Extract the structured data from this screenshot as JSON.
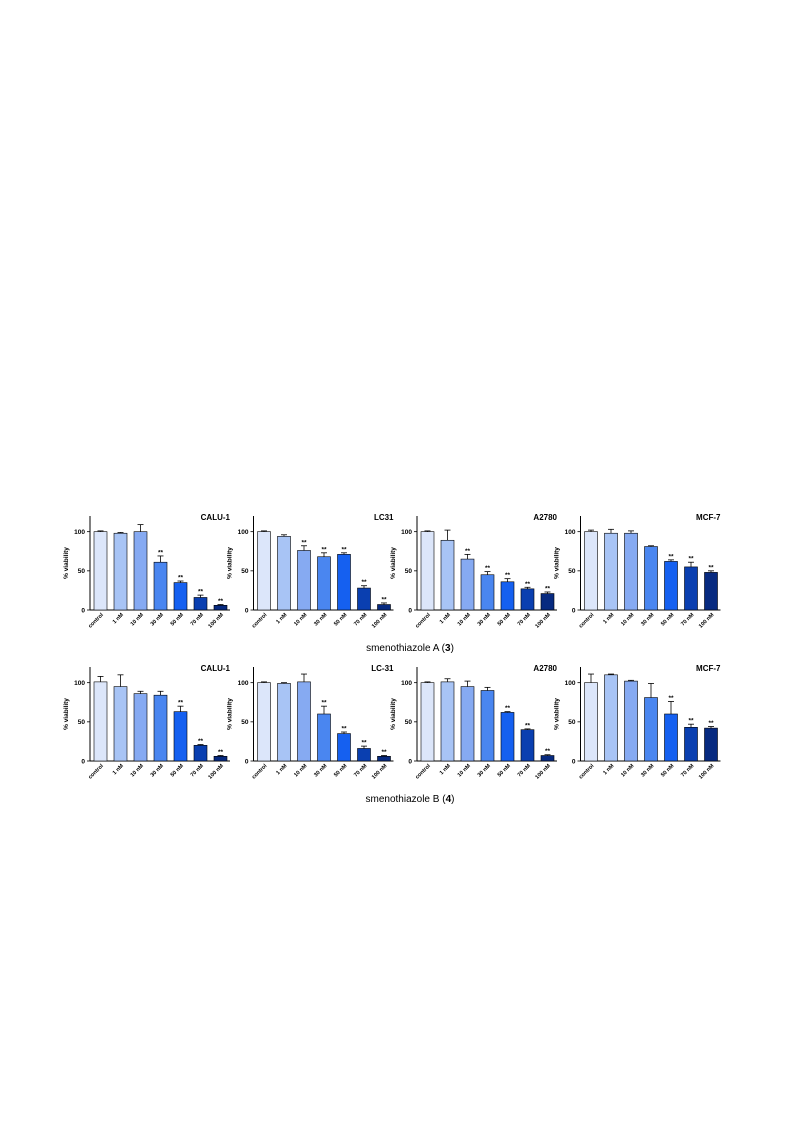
{
  "chart_data": [
    {
      "type": "bar",
      "title": "CALU-1",
      "ylabel": "% viability",
      "categories": [
        "control",
        "1 nM",
        "10 nM",
        "30 nM",
        "50 nM",
        "70 nM",
        "100 nM"
      ],
      "values": [
        100,
        98,
        100,
        61,
        35,
        16,
        6
      ],
      "errors": [
        1,
        1,
        9,
        8,
        2,
        3,
        1
      ],
      "annotations": [
        null,
        null,
        null,
        "**",
        "**",
        "**",
        "**"
      ],
      "colors": [
        "#dce6fa",
        "#a8c4f5",
        "#86aaf2",
        "#4a86f0",
        "#1560f0",
        "#0a3fb0",
        "#072a80"
      ],
      "ylim": [
        0,
        120
      ],
      "yticks": [
        0,
        50,
        100
      ]
    },
    {
      "type": "bar",
      "title": "LC31",
      "ylabel": "% viability",
      "categories": [
        "control",
        "1 nM",
        "10 nM",
        "30 nM",
        "50 nM",
        "70 nM",
        "100 nM"
      ],
      "values": [
        100,
        94,
        76,
        68,
        71,
        28,
        7
      ],
      "errors": [
        1,
        2,
        6,
        5,
        2,
        3,
        2
      ],
      "annotations": [
        null,
        null,
        "**",
        "**",
        "**",
        "**",
        "**"
      ],
      "colors": [
        "#dce6fa",
        "#a8c4f5",
        "#86aaf2",
        "#4a86f0",
        "#1560f0",
        "#0a3fb0",
        "#072a80"
      ],
      "ylim": [
        0,
        120
      ],
      "yticks": [
        0,
        50,
        100
      ]
    },
    {
      "type": "bar",
      "title": "A2780",
      "ylabel": "% viability",
      "categories": [
        "control",
        "1 nM",
        "10 nM",
        "30 nM",
        "50 nM",
        "70 nM",
        "100 nM"
      ],
      "values": [
        100,
        89,
        65,
        45,
        36,
        27,
        21
      ],
      "errors": [
        1,
        13,
        6,
        4,
        4,
        2,
        2
      ],
      "annotations": [
        null,
        null,
        "**",
        "**",
        "**",
        "**",
        "**"
      ],
      "colors": [
        "#dce6fa",
        "#a8c4f5",
        "#86aaf2",
        "#4a86f0",
        "#1560f0",
        "#0a3fb0",
        "#072a80"
      ],
      "ylim": [
        0,
        120
      ],
      "yticks": [
        0,
        50,
        100
      ]
    },
    {
      "type": "bar",
      "title": "MCF-7",
      "ylabel": "% viability",
      "categories": [
        "control",
        "1 nM",
        "10 nM",
        "30 nM",
        "50 nM",
        "70 nM",
        "100 nM"
      ],
      "values": [
        100,
        98,
        98,
        81,
        62,
        55,
        48
      ],
      "errors": [
        2,
        5,
        3,
        1,
        2,
        6,
        2
      ],
      "annotations": [
        null,
        null,
        null,
        null,
        "**",
        "**",
        "**"
      ],
      "colors": [
        "#dce6fa",
        "#a8c4f5",
        "#86aaf2",
        "#4a86f0",
        "#1560f0",
        "#0a3fb0",
        "#072a80"
      ],
      "ylim": [
        0,
        120
      ],
      "yticks": [
        0,
        50,
        100
      ]
    },
    {
      "type": "bar",
      "title": "CALU-1",
      "ylabel": "% viability",
      "categories": [
        "control",
        "1 nM",
        "10 nM",
        "30 nM",
        "50 nM",
        "70 nM",
        "100 nM"
      ],
      "values": [
        101,
        95,
        86,
        84,
        63,
        20,
        6
      ],
      "errors": [
        7,
        15,
        3,
        5,
        7,
        1,
        1
      ],
      "annotations": [
        null,
        null,
        null,
        null,
        "**",
        "**",
        "**"
      ],
      "colors": [
        "#dce6fa",
        "#a8c4f5",
        "#86aaf2",
        "#4a86f0",
        "#1560f0",
        "#0a3fb0",
        "#072a80"
      ],
      "ylim": [
        0,
        120
      ],
      "yticks": [
        0,
        50,
        100
      ]
    },
    {
      "type": "bar",
      "title": "LC-31",
      "ylabel": "% viability",
      "categories": [
        "control",
        "1 nM",
        "10 nM",
        "30 nM",
        "50 nM",
        "70 nM",
        "100 nM"
      ],
      "values": [
        100,
        99,
        101,
        60,
        35,
        16,
        6
      ],
      "errors": [
        1,
        1,
        10,
        10,
        2,
        3,
        1
      ],
      "annotations": [
        null,
        null,
        null,
        "**",
        "**",
        "**",
        "**"
      ],
      "colors": [
        "#dce6fa",
        "#a8c4f5",
        "#86aaf2",
        "#4a86f0",
        "#1560f0",
        "#0a3fb0",
        "#072a80"
      ],
      "ylim": [
        0,
        120
      ],
      "yticks": [
        0,
        50,
        100
      ]
    },
    {
      "type": "bar",
      "title": "A2780",
      "ylabel": "% viability",
      "categories": [
        "control",
        "1 nM",
        "10 nM",
        "30 nM",
        "50 nM",
        "70 nM",
        "100 nM"
      ],
      "values": [
        100,
        101,
        95,
        90,
        62,
        40,
        7
      ],
      "errors": [
        1,
        4,
        7,
        4,
        1,
        1,
        1
      ],
      "annotations": [
        null,
        null,
        null,
        null,
        "**",
        "**",
        "**"
      ],
      "colors": [
        "#dce6fa",
        "#a8c4f5",
        "#86aaf2",
        "#4a86f0",
        "#1560f0",
        "#0a3fb0",
        "#072a80"
      ],
      "ylim": [
        0,
        120
      ],
      "yticks": [
        0,
        50,
        100
      ]
    },
    {
      "type": "bar",
      "title": "MCF-7",
      "ylabel": "% viability",
      "categories": [
        "control",
        "1 nM",
        "10 nM",
        "30 nM",
        "50 nM",
        "70 nM",
        "100 nM"
      ],
      "values": [
        100,
        110,
        102,
        81,
        60,
        43,
        42
      ],
      "errors": [
        11,
        1,
        1,
        18,
        16,
        4,
        2
      ],
      "annotations": [
        null,
        null,
        null,
        null,
        "**",
        "**",
        "**"
      ],
      "colors": [
        "#dce6fa",
        "#a8c4f5",
        "#86aaf2",
        "#4a86f0",
        "#1560f0",
        "#0a3fb0",
        "#072a80"
      ],
      "ylim": [
        0,
        120
      ],
      "yticks": [
        0,
        50,
        100
      ]
    }
  ],
  "captions": [
    {
      "text": "smenothiazole A (",
      "compound": "3",
      "close": ")"
    },
    {
      "text": "smenothiazole B (",
      "compound": "4",
      "close": ")"
    }
  ]
}
